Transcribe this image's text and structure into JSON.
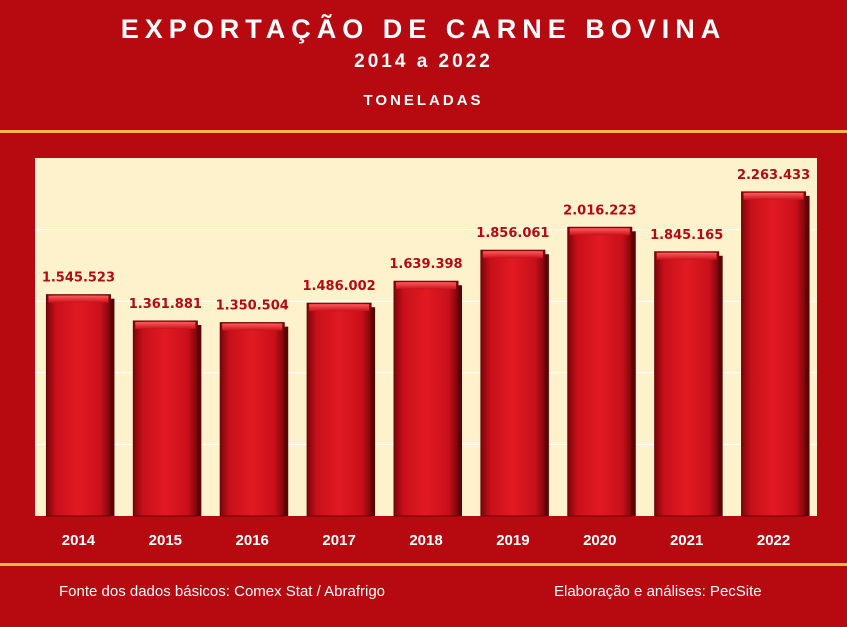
{
  "header": {
    "title": "EXPORTAÇÃO DE CARNE BOVINA",
    "subtitle": "2014 a 2022",
    "unit": "TONELADAS"
  },
  "footer": {
    "source": "Fonte dos dados básicos: Comex Stat  /   Abrafrigo",
    "credit": "Elaboração e análises: PecSite"
  },
  "colors": {
    "background": "#b70a10",
    "plot_area": "#fdf2cc",
    "bar": "#c8101a",
    "accent_line": "#f2b54a",
    "value_label": "#b30b12"
  },
  "chart_data": {
    "type": "bar",
    "categories": [
      "2014",
      "2015",
      "2016",
      "2017",
      "2018",
      "2019",
      "2020",
      "2021",
      "2022"
    ],
    "values": [
      1545523,
      1361881,
      1350504,
      1486002,
      1639398,
      1856061,
      2016223,
      1845165,
      2263433
    ],
    "data_labels": [
      "1.545.523",
      "1.361.881",
      "1.350.504",
      "1.486.002",
      "1.639.398",
      "1.856.061",
      "2.016.223",
      "1.845.165",
      "2.263.433"
    ],
    "ylim": [
      0,
      2500000
    ],
    "grid": true,
    "legend": "none"
  }
}
